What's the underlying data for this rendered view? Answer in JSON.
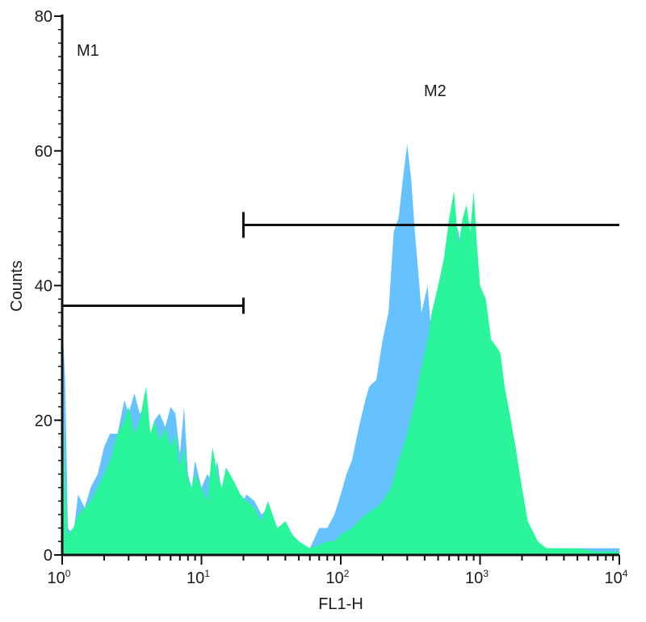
{
  "chart_data": {
    "type": "area",
    "xlabel": "FL1-H",
    "ylabel": "Counts",
    "xscale": "log",
    "xlim": [
      1,
      10000
    ],
    "ylim": [
      0,
      80
    ],
    "grid": false,
    "x_ticks": [
      {
        "base": "10",
        "exp": "0"
      },
      {
        "base": "10",
        "exp": "1"
      },
      {
        "base": "10",
        "exp": "2"
      },
      {
        "base": "10",
        "exp": "3"
      },
      {
        "base": "10",
        "exp": "4"
      }
    ],
    "y_ticks": [
      "0",
      "20",
      "40",
      "60",
      "80"
    ],
    "series": [
      {
        "color": "#66c2ff",
        "x": [
          1,
          1.05,
          1.1,
          1.2,
          1.3,
          1.45,
          1.6,
          1.8,
          2.0,
          2.2,
          2.5,
          2.8,
          3.0,
          3.3,
          3.6,
          4.0,
          4.3,
          4.6,
          5.0,
          5.5,
          6.0,
          6.5,
          7.0,
          7.5,
          8.0,
          8.5,
          9.0,
          10,
          11,
          12,
          13,
          14,
          15,
          17,
          19,
          21,
          24,
          27,
          30,
          35,
          40,
          45,
          50,
          60,
          70,
          80,
          90,
          100,
          110,
          120,
          135,
          150,
          160,
          180,
          200,
          220,
          240,
          260,
          280,
          300,
          320,
          340,
          360,
          380,
          420,
          450,
          480,
          500,
          550,
          600,
          650,
          700,
          750,
          800,
          850,
          900,
          950,
          1000,
          1100,
          1200,
          1300,
          1400,
          1600,
          1800,
          2000,
          2200,
          2600,
          3000,
          3500,
          4000,
          5000,
          7000,
          10000
        ],
        "values": [
          35,
          26,
          4,
          3,
          9,
          7,
          10,
          12,
          16,
          18,
          18,
          23,
          21,
          24,
          21,
          22,
          18,
          20,
          21,
          19,
          22,
          21,
          15,
          22,
          12,
          10,
          14,
          10,
          12,
          11,
          14,
          9,
          12,
          11,
          7,
          9,
          8,
          6,
          7,
          3,
          5,
          3,
          2,
          1,
          4,
          4,
          6,
          9,
          12,
          14,
          19,
          23,
          25,
          26,
          32,
          36,
          48,
          50,
          56,
          61,
          56,
          48,
          42,
          36,
          40,
          32,
          34,
          38,
          44,
          46,
          50,
          48,
          44,
          40,
          36,
          30,
          25,
          20,
          14,
          9,
          6,
          3,
          1.5,
          1,
          1,
          1,
          1,
          1,
          1,
          1,
          1,
          1,
          1
        ]
      },
      {
        "color": "#2af59a",
        "x": [
          1,
          1.05,
          1.1,
          1.2,
          1.3,
          1.45,
          1.6,
          1.8,
          2.0,
          2.2,
          2.5,
          2.8,
          3.0,
          3.3,
          3.6,
          4.0,
          4.3,
          4.6,
          5.0,
          5.5,
          6.0,
          6.5,
          7.0,
          7.5,
          8.0,
          8.5,
          9.0,
          10,
          11,
          12,
          13,
          14,
          15,
          17,
          19,
          21,
          24,
          27,
          30,
          35,
          40,
          45,
          50,
          60,
          70,
          80,
          90,
          100,
          120,
          150,
          180,
          200,
          230,
          260,
          300,
          350,
          380,
          420,
          450,
          500,
          550,
          600,
          650,
          700,
          750,
          800,
          850,
          900,
          950,
          1000,
          1100,
          1200,
          1300,
          1400,
          1500,
          1600,
          1800,
          2000,
          2200,
          2600,
          3000,
          3500,
          4000,
          5000,
          7000,
          10000
        ],
        "values": [
          27,
          10,
          3,
          4,
          6,
          7,
          8,
          10,
          12,
          14,
          18,
          20,
          22,
          18,
          20,
          25,
          18,
          20,
          17,
          19,
          16,
          18,
          13,
          16,
          11,
          10,
          12,
          10,
          8,
          16,
          12,
          10,
          13,
          11,
          9,
          8,
          7,
          5,
          8,
          4,
          5,
          3,
          2,
          1,
          1.5,
          2,
          2,
          3,
          4,
          6,
          7,
          8,
          10,
          14,
          18,
          24,
          28,
          32,
          36,
          40,
          44,
          50,
          54,
          46,
          50,
          52,
          48,
          54,
          46,
          40,
          38,
          32,
          31,
          30,
          25,
          22,
          16,
          10,
          5,
          2,
          1,
          1,
          1,
          1,
          0.5,
          0.5
        ]
      }
    ],
    "annotations": [
      {
        "label": "M1",
        "x_start": 1,
        "x_end": 20,
        "y": 37
      },
      {
        "label": "M2",
        "x_start": 20,
        "x_end": 10000,
        "y": 49
      }
    ]
  }
}
